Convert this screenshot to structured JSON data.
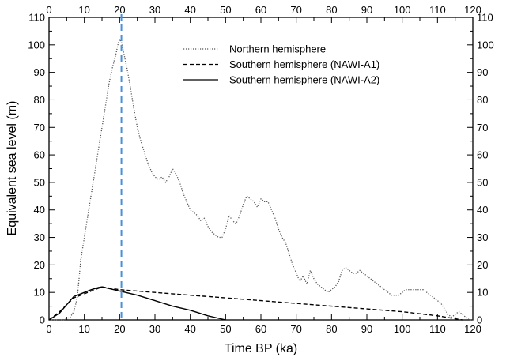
{
  "chart_data": {
    "type": "line",
    "xlabel": "Time BP (ka)",
    "ylabel": "Equivalent sea level (m)",
    "xlim": [
      0,
      120
    ],
    "ylim": [
      0,
      110
    ],
    "xticks": [
      0,
      10,
      20,
      30,
      40,
      50,
      60,
      70,
      80,
      90,
      100,
      110,
      120
    ],
    "yticks": [
      0,
      10,
      20,
      30,
      40,
      50,
      60,
      70,
      80,
      90,
      100,
      110
    ],
    "grid": false,
    "legend_position": "top-right",
    "series": [
      {
        "name": "Northern hemisphere",
        "style": "dotted",
        "color": "#555555",
        "x": [
          0,
          4,
          6,
          7,
          8,
          8.5,
          9,
          10,
          11,
          12,
          13,
          14,
          15,
          16,
          17,
          18,
          19,
          19.5,
          20,
          20.5,
          21,
          22,
          23,
          24,
          25,
          26,
          27,
          28,
          29,
          30,
          31,
          32,
          33,
          34,
          35,
          36,
          37,
          38,
          39,
          40,
          41,
          42,
          43,
          44,
          45,
          46,
          47,
          48,
          49,
          50,
          51,
          52,
          53,
          54,
          55,
          56,
          57,
          58,
          59,
          60,
          61,
          62,
          63,
          64,
          65,
          66,
          67,
          68,
          69,
          70,
          71,
          72,
          73,
          74,
          75,
          76,
          77,
          78,
          79,
          80,
          81,
          82,
          83,
          84,
          85,
          86,
          87,
          88,
          89,
          90,
          91,
          92,
          93,
          94,
          95,
          96,
          97,
          98,
          99,
          100,
          101,
          102,
          103,
          104,
          105,
          106,
          107,
          108,
          109,
          110,
          111,
          112,
          113,
          114,
          115,
          116,
          117,
          118,
          119,
          120
        ],
        "values": [
          0,
          0,
          1,
          3,
          8,
          15,
          22,
          30,
          38,
          46,
          54,
          62,
          70,
          78,
          86,
          92,
          97,
          100,
          102,
          101,
          98,
          92,
          85,
          77,
          70,
          65,
          61,
          57,
          54,
          52,
          51,
          52,
          50,
          52,
          55,
          53,
          50,
          46,
          43,
          40,
          39,
          38,
          36,
          37,
          34,
          32,
          31,
          30,
          30,
          33,
          38,
          36,
          35,
          38,
          42,
          45,
          44,
          43,
          41,
          44,
          43,
          43,
          40,
          37,
          33,
          30,
          28,
          24,
          20,
          17,
          14,
          16,
          13,
          18,
          15,
          13,
          12,
          11,
          10,
          11,
          12,
          14,
          18,
          19,
          18,
          17,
          17,
          18,
          17,
          16,
          15,
          14,
          13,
          12,
          11,
          10,
          9,
          9,
          9,
          10,
          11,
          11,
          11,
          11,
          11,
          11,
          10,
          9,
          8,
          7,
          6,
          4,
          2,
          1,
          2,
          3,
          2,
          1,
          0,
          0
        ]
      },
      {
        "name": "Southern hemisphere (NAWI-A1)",
        "style": "dashed",
        "color": "#000000",
        "x": [
          0,
          3,
          7,
          10,
          12,
          14,
          15,
          20,
          30,
          40,
          50,
          60,
          70,
          80,
          90,
          100,
          110,
          117
        ],
        "values": [
          0,
          3,
          8,
          9.5,
          10.5,
          11.5,
          12,
          11,
          10,
          9,
          8,
          7,
          6,
          5,
          4,
          3,
          1.5,
          0
        ]
      },
      {
        "name": "Southern hemisphere (NAWI-A2)",
        "style": "solid",
        "color": "#000000",
        "x": [
          0,
          3,
          6,
          7,
          10,
          12,
          14,
          15,
          20,
          25,
          30,
          35,
          40,
          45,
          50
        ],
        "values": [
          0,
          2.5,
          7,
          8.5,
          10,
          11,
          11.8,
          12,
          10.5,
          9,
          7,
          5,
          3.5,
          1.5,
          0
        ]
      }
    ],
    "reference_line": {
      "x": 20.5,
      "style": "dashed",
      "color": "#4a90d9"
    }
  }
}
